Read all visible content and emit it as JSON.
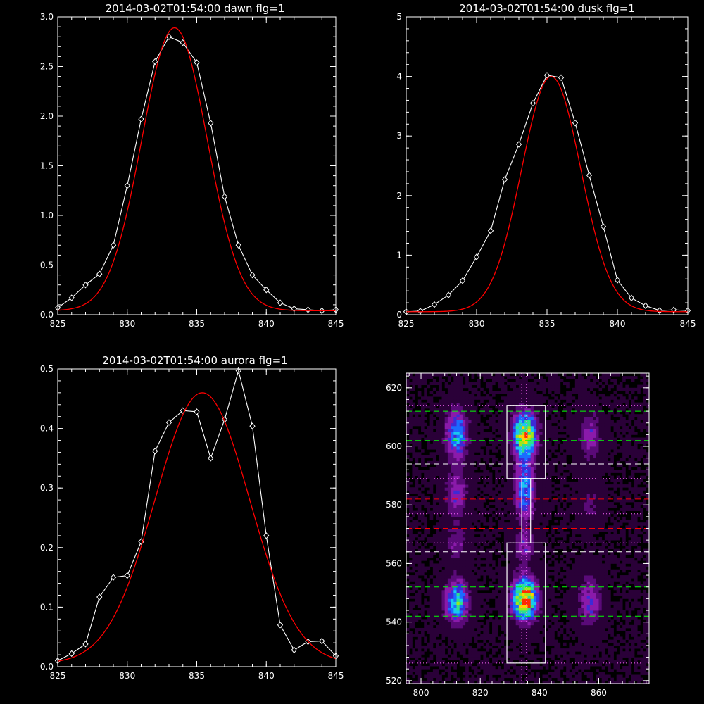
{
  "chart_data": [
    {
      "type": "line",
      "title": "2014-03-02T01:54:00 dawn flg=1",
      "xlim": [
        825,
        845
      ],
      "ylim": [
        0,
        3.0
      ],
      "xticks": [
        "825",
        "830",
        "835",
        "840",
        "845"
      ],
      "yticks": [
        "0.0",
        "0.5",
        "1.0",
        "1.5",
        "2.0",
        "2.5",
        "3.0"
      ],
      "xtick_values": [
        825,
        830,
        835,
        840,
        845
      ],
      "ytick_values": [
        0,
        0.5,
        1.0,
        1.5,
        2.0,
        2.5,
        3.0
      ],
      "series": [
        {
          "style": "data-with-diamonds",
          "color": "#ffffff",
          "x": [
            825,
            826,
            827,
            828,
            829,
            830,
            831,
            832,
            833,
            834,
            835,
            836,
            837,
            838,
            839,
            840,
            841,
            842,
            843,
            844,
            845
          ],
          "y": [
            0.07,
            0.17,
            0.3,
            0.41,
            0.7,
            1.3,
            1.97,
            2.55,
            2.8,
            2.74,
            2.54,
            1.93,
            1.19,
            0.7,
            0.4,
            0.25,
            0.12,
            0.06,
            0.05,
            0.04,
            0.05
          ]
        },
        {
          "style": "gaussian-fit",
          "color": "#ff0000",
          "fit": {
            "amp": 2.85,
            "mu": 833.4,
            "sigma": 2.35,
            "base": 0.04
          }
        }
      ]
    },
    {
      "type": "line",
      "title": "2014-03-02T01:54:00 dusk flg=1",
      "xlim": [
        825,
        845
      ],
      "ylim": [
        0,
        5
      ],
      "xticks": [
        "825",
        "830",
        "835",
        "840",
        "845"
      ],
      "yticks": [
        "0",
        "1",
        "2",
        "3",
        "4",
        "5"
      ],
      "xtick_values": [
        825,
        830,
        835,
        840,
        845
      ],
      "ytick_values": [
        0,
        1,
        2,
        3,
        4,
        5
      ],
      "series": [
        {
          "style": "data-with-diamonds",
          "color": "#ffffff",
          "x": [
            825,
            826,
            827,
            828,
            829,
            830,
            831,
            832,
            833,
            834,
            835,
            836,
            837,
            838,
            839,
            840,
            841,
            842,
            843,
            844,
            845
          ],
          "y": [
            0.05,
            0.06,
            0.17,
            0.33,
            0.57,
            0.97,
            1.41,
            2.27,
            2.86,
            3.55,
            4.02,
            3.98,
            3.22,
            2.34,
            1.48,
            0.58,
            0.28,
            0.15,
            0.07,
            0.08,
            0.07
          ]
        },
        {
          "style": "gaussian-fit",
          "color": "#ff0000",
          "fit": {
            "amp": 3.95,
            "mu": 835.3,
            "sigma": 2.1,
            "base": 0.05
          }
        }
      ]
    },
    {
      "type": "line",
      "title": "2014-03-02T01:54:00 aurora flg=1",
      "xlim": [
        825,
        845
      ],
      "ylim": [
        0,
        0.5
      ],
      "xticks": [
        "825",
        "830",
        "835",
        "840",
        "845"
      ],
      "yticks": [
        "0.0",
        "0.1",
        "0.2",
        "0.3",
        "0.4",
        "0.5"
      ],
      "xtick_values": [
        825,
        830,
        835,
        840,
        845
      ],
      "ytick_values": [
        0,
        0.1,
        0.2,
        0.3,
        0.4,
        0.5
      ],
      "series": [
        {
          "style": "data-with-diamonds",
          "color": "#ffffff",
          "x": [
            825,
            826,
            827,
            828,
            829,
            830,
            831,
            832,
            833,
            834,
            835,
            836,
            837,
            838,
            839,
            840,
            841,
            842,
            843,
            844,
            845
          ],
          "y": [
            0.01,
            0.022,
            0.038,
            0.117,
            0.15,
            0.153,
            0.21,
            0.362,
            0.41,
            0.43,
            0.428,
            0.35,
            0.415,
            0.497,
            0.404,
            0.22,
            0.07,
            0.028,
            0.042,
            0.043,
            0.018
          ]
        },
        {
          "style": "gaussian-fit",
          "color": "#ff0000",
          "fit": {
            "amp": 0.455,
            "mu": 835.4,
            "sigma": 3.4,
            "base": 0.005
          }
        }
      ]
    },
    {
      "type": "heatmap",
      "title": "",
      "xlim": [
        795,
        877
      ],
      "ylim": [
        519,
        625
      ],
      "xticks": [
        "800",
        "820",
        "840",
        "860"
      ],
      "yticks": [
        "520",
        "540",
        "560",
        "580",
        "600",
        "620"
      ],
      "xtick_values": [
        800,
        820,
        840,
        860
      ],
      "ytick_values": [
        520,
        540,
        560,
        580,
        600,
        620
      ],
      "colormap": [
        "#000000",
        "#2a0038",
        "#5a0a78",
        "#8a1aaa",
        "#3d2bd6",
        "#1a6cff",
        "#19c8f0",
        "#2ee08a",
        "#9ce61e",
        "#ffd000",
        "#ff2a00"
      ],
      "blobs": [
        {
          "x": 812,
          "y": 604,
          "sx": 2.6,
          "sy": 6.0,
          "amp": 0.55
        },
        {
          "x": 812,
          "y": 584,
          "sx": 2.6,
          "sy": 5.0,
          "amp": 0.32
        },
        {
          "x": 812,
          "y": 547,
          "sx": 2.8,
          "sy": 5.0,
          "amp": 0.62
        },
        {
          "x": 835,
          "y": 604,
          "sx": 2.8,
          "sy": 5.5,
          "amp": 0.9
        },
        {
          "x": 835,
          "y": 585,
          "sx": 2.4,
          "sy": 7.0,
          "amp": 0.5
        },
        {
          "x": 835,
          "y": 548,
          "sx": 3.0,
          "sy": 5.0,
          "amp": 1.0
        },
        {
          "x": 835,
          "y": 566,
          "sx": 2.4,
          "sy": 4.0,
          "amp": 0.28
        },
        {
          "x": 857,
          "y": 603,
          "sx": 2.6,
          "sy": 6.0,
          "amp": 0.28
        },
        {
          "x": 857,
          "y": 547,
          "sx": 2.8,
          "sy": 6.0,
          "amp": 0.34
        },
        {
          "x": 812,
          "y": 567,
          "sx": 2.6,
          "sy": 5.0,
          "amp": 0.2
        },
        {
          "x": 857,
          "y": 580,
          "sx": 2.6,
          "sy": 5.0,
          "amp": 0.15
        }
      ],
      "rects": [
        {
          "x0": 829,
          "x1": 842,
          "y0": 589,
          "y1": 614,
          "color": "#ffffff"
        },
        {
          "x0": 834,
          "x1": 837,
          "y0": 567,
          "y1": 589,
          "color": "#ffffff"
        },
        {
          "x0": 829,
          "x1": 842,
          "y0": 526,
          "y1": 567,
          "color": "#ffffff"
        }
      ],
      "hlines": [
        {
          "y": 612,
          "color": "#00ff00",
          "dash": "long"
        },
        {
          "y": 602,
          "color": "#00ff00",
          "dash": "long"
        },
        {
          "y": 552,
          "color": "#00ff00",
          "dash": "long"
        },
        {
          "y": 542,
          "color": "#00ff00",
          "dash": "long"
        },
        {
          "y": 594,
          "color": "#ffffff",
          "dash": "long"
        },
        {
          "y": 564,
          "color": "#ffffff",
          "dash": "long"
        },
        {
          "y": 582,
          "color": "#ff0000",
          "dash": "long"
        },
        {
          "y": 572,
          "color": "#ff0000",
          "dash": "long"
        },
        {
          "y": 614,
          "color": "#ff66ff",
          "dash": "dot"
        },
        {
          "y": 589,
          "color": "#ff66ff",
          "dash": "dot"
        },
        {
          "y": 577,
          "color": "#ff66ff",
          "dash": "dot"
        },
        {
          "y": 567,
          "color": "#ff66ff",
          "dash": "dot"
        },
        {
          "y": 526,
          "color": "#ff66ff",
          "dash": "dot"
        }
      ],
      "vlines": [
        {
          "x": 834,
          "color": "#ff66ff",
          "dash": "dot"
        },
        {
          "x": 835.6,
          "color": "#ff66ff",
          "dash": "dot"
        }
      ]
    }
  ]
}
